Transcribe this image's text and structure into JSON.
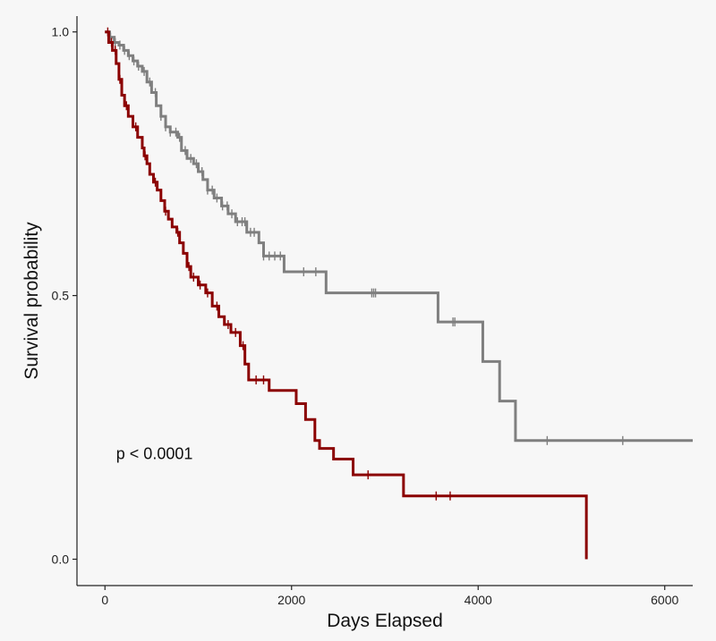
{
  "chart_data": {
    "type": "line",
    "xlabel": "Days Elapsed",
    "ylabel": "Survival probability",
    "xlim": [
      -300,
      6300
    ],
    "ylim": [
      -0.05,
      1.03
    ],
    "x_ticks": [
      0,
      2000,
      4000,
      6000
    ],
    "x_tick_labels": [
      "0",
      "2000",
      "4000",
      "6000"
    ],
    "y_ticks": [
      0.0,
      0.5,
      1.0
    ],
    "y_tick_labels": [
      "0.0",
      "0.5",
      "1.0"
    ],
    "grid": false,
    "annotation": {
      "text": "p < 0.0001",
      "x": 120,
      "y": 0.19
    },
    "series": [
      {
        "color": "#7f7f7f",
        "steps": [
          [
            0,
            1.0
          ],
          [
            50,
            0.99
          ],
          [
            100,
            0.98
          ],
          [
            150,
            0.975
          ],
          [
            200,
            0.965
          ],
          [
            250,
            0.955
          ],
          [
            300,
            0.945
          ],
          [
            350,
            0.935
          ],
          [
            400,
            0.925
          ],
          [
            450,
            0.905
          ],
          [
            500,
            0.885
          ],
          [
            550,
            0.86
          ],
          [
            600,
            0.84
          ],
          [
            650,
            0.82
          ],
          [
            700,
            0.81
          ],
          [
            780,
            0.8
          ],
          [
            820,
            0.775
          ],
          [
            880,
            0.76
          ],
          [
            950,
            0.75
          ],
          [
            1000,
            0.735
          ],
          [
            1050,
            0.72
          ],
          [
            1100,
            0.7
          ],
          [
            1170,
            0.685
          ],
          [
            1250,
            0.67
          ],
          [
            1320,
            0.655
          ],
          [
            1400,
            0.64
          ],
          [
            1520,
            0.62
          ],
          [
            1650,
            0.6
          ],
          [
            1700,
            0.575
          ],
          [
            1920,
            0.545
          ],
          [
            2370,
            0.505
          ],
          [
            3570,
            0.45
          ],
          [
            4050,
            0.375
          ],
          [
            4230,
            0.3
          ],
          [
            4400,
            0.225
          ],
          [
            6300,
            0.225
          ]
        ],
        "censor_x": [
          60,
          110,
          160,
          210,
          260,
          310,
          360,
          420,
          480,
          540,
          600,
          650,
          700,
          760,
          800,
          860,
          920,
          980,
          1040,
          1100,
          1150,
          1200,
          1260,
          1310,
          1360,
          1420,
          1470,
          1500,
          1560,
          1600,
          1700,
          1760,
          1820,
          1880,
          2130,
          2260,
          2860,
          2880,
          2900,
          3730,
          3750,
          4740,
          5550
        ]
      },
      {
        "color": "#8b0000",
        "steps": [
          [
            0,
            1.0
          ],
          [
            40,
            0.98
          ],
          [
            80,
            0.965
          ],
          [
            120,
            0.94
          ],
          [
            150,
            0.91
          ],
          [
            180,
            0.88
          ],
          [
            210,
            0.86
          ],
          [
            250,
            0.84
          ],
          [
            300,
            0.82
          ],
          [
            350,
            0.8
          ],
          [
            400,
            0.78
          ],
          [
            420,
            0.765
          ],
          [
            450,
            0.75
          ],
          [
            480,
            0.73
          ],
          [
            520,
            0.715
          ],
          [
            560,
            0.7
          ],
          [
            600,
            0.68
          ],
          [
            640,
            0.66
          ],
          [
            680,
            0.645
          ],
          [
            720,
            0.63
          ],
          [
            770,
            0.62
          ],
          [
            800,
            0.6
          ],
          [
            840,
            0.58
          ],
          [
            880,
            0.555
          ],
          [
            920,
            0.535
          ],
          [
            1000,
            0.52
          ],
          [
            1080,
            0.505
          ],
          [
            1150,
            0.48
          ],
          [
            1220,
            0.46
          ],
          [
            1280,
            0.445
          ],
          [
            1350,
            0.43
          ],
          [
            1450,
            0.405
          ],
          [
            1500,
            0.37
          ],
          [
            1540,
            0.34
          ],
          [
            1760,
            0.32
          ],
          [
            2050,
            0.295
          ],
          [
            2150,
            0.265
          ],
          [
            2250,
            0.225
          ],
          [
            2300,
            0.21
          ],
          [
            2450,
            0.19
          ],
          [
            2660,
            0.16
          ],
          [
            3200,
            0.12
          ],
          [
            5160,
            0.12
          ],
          [
            5160,
            0.0
          ]
        ],
        "censor_x": [
          30,
          70,
          110,
          160,
          230,
          330,
          430,
          540,
          650,
          780,
          900,
          950,
          1020,
          1100,
          1200,
          1320,
          1400,
          1480,
          1620,
          1700,
          2820,
          3550,
          3700
        ]
      }
    ]
  }
}
